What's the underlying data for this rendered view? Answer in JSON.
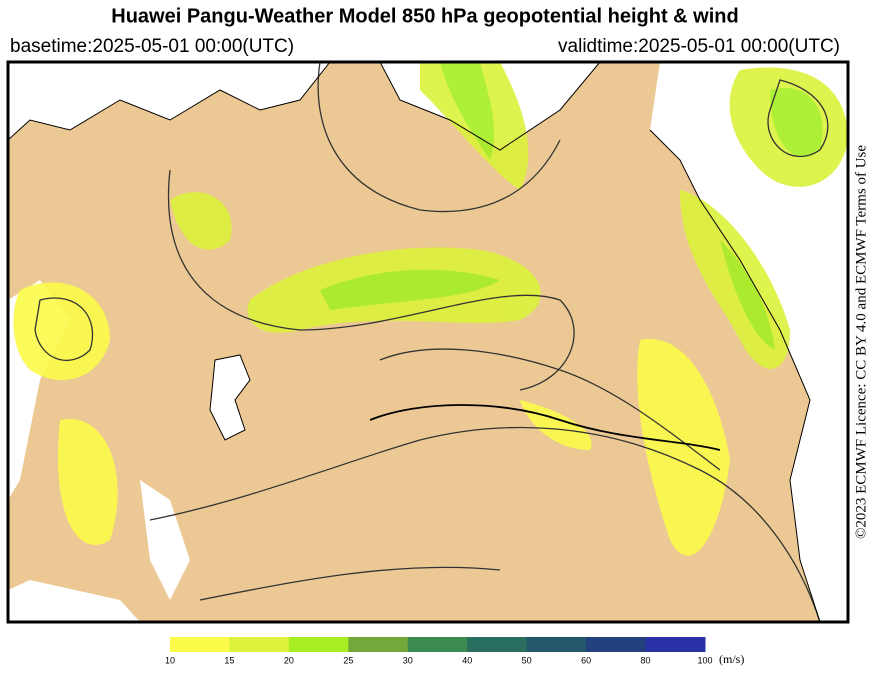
{
  "header": {
    "title": "Huawei Pangu-Weather Model 850 hPa geopotential height & wind",
    "basetime": "basetime:2025-05-01 00:00(UTC)",
    "validtime": "validtime:2025-05-01 00:00(UTC)"
  },
  "credit": "©2023 ECMWF Licence: CC BY 4.0 and ECMWF Terms of Use",
  "colorbar": {
    "ticks": [
      10,
      15,
      20,
      25,
      30,
      40,
      50,
      60,
      80,
      100
    ],
    "colors": [
      "#fbfb4a",
      "#dcf23c",
      "#a6ee22",
      "#74a83a",
      "#3c8a52",
      "#2a6e60",
      "#23586c",
      "#22417e",
      "#2832a6"
    ],
    "unit": "(m/s)"
  }
}
